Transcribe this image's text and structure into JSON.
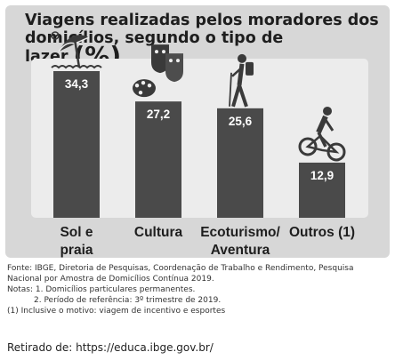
{
  "chart_data": {
    "type": "bar",
    "title_line1": "Viagens realizadas pelos moradores dos",
    "title_line2": "domicílios, segundo o tipo de lazer",
    "unit": "(%)",
    "categories": [
      {
        "lines": [
          "Sol e",
          "praia"
        ],
        "icon": "beach-umbrella-icon"
      },
      {
        "lines": [
          "Cultura"
        ],
        "icon": "theater-masks-palette-icon"
      },
      {
        "lines": [
          "Ecoturismo/",
          "Aventura"
        ],
        "icon": "hiker-icon"
      },
      {
        "lines": [
          "Outros (1)"
        ],
        "icon": "cyclist-icon"
      }
    ],
    "values": [
      34.3,
      27.2,
      25.6,
      12.9
    ],
    "value_labels": [
      "34,3",
      "27,2",
      "25,6",
      "12,9"
    ],
    "ylim": [
      0,
      34.3
    ],
    "colors": {
      "bar": "#4a4a4a",
      "panel": "#d7d7d7",
      "highlight": "#ececec"
    }
  },
  "footnotes": {
    "fonte": "Fonte: IBGE, Diretoria de Pesquisas, Coordenação de Trabalho e Rendimento, Pesquisa Nacional por Amostra de Domicílios Contínua 2019.",
    "nota1": "Notas: 1. Domicílios particulares permanentes.",
    "nota2": "2. Período de referência: 3º trimestre de 2019.",
    "nota3": "(1) Inclusive o motivo: viagem de incentivo e esportes"
  },
  "source": "Retirado de: https://educa.ibge.gov.br/"
}
